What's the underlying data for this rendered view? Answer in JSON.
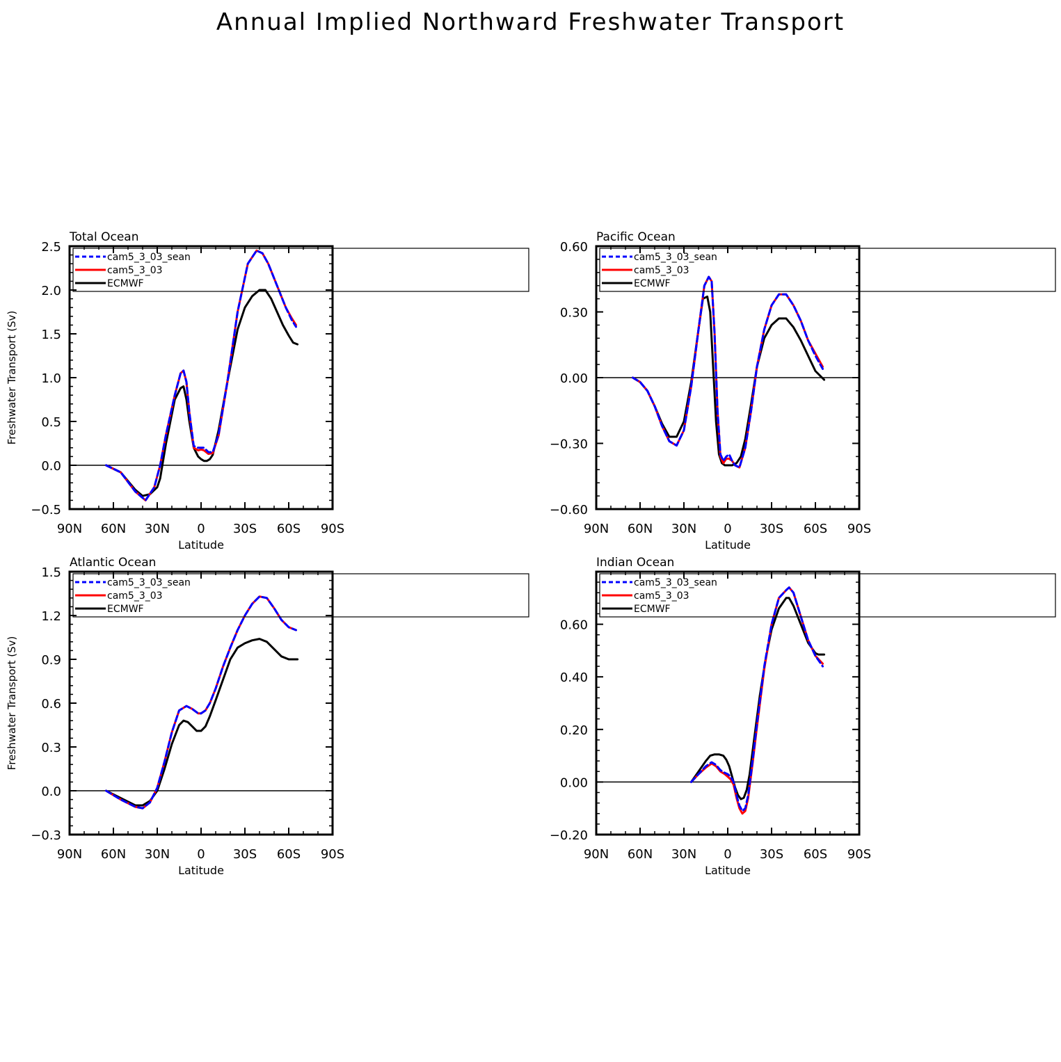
{
  "figure_title": "Annual Implied Northward Freshwater Transport",
  "colors": {
    "cam5_3_03_sean": "#0000ff",
    "cam5_3_03": "#ff0000",
    "ECMWF": "#000000",
    "frame": "#000000"
  },
  "chart_data": [
    {
      "type": "line",
      "title": "Total Ocean",
      "xlabel": "Latitude",
      "ylabel": "Freshwater Transport (Sv)",
      "x_axis_note": "Latitude increases from 90N (left) to 90S (right)",
      "xlim": [
        -90,
        90
      ],
      "xticks": [
        -90,
        -60,
        -30,
        0,
        30,
        60,
        90
      ],
      "xtick_labels": [
        "90N",
        "60N",
        "30N",
        "0",
        "30S",
        "60S",
        "90S"
      ],
      "ylim": [
        -0.5,
        2.5
      ],
      "yticks": [
        -0.5,
        0.0,
        0.5,
        1.0,
        1.5,
        2.0,
        2.5
      ],
      "ytick_labels": [
        "−0.5",
        "0.0",
        "0.5",
        "1.0",
        "1.5",
        "2.0",
        "2.5"
      ],
      "zero_line": true,
      "grid": false,
      "legend_position": "top-left",
      "series": [
        {
          "name": "cam5_3_03_sean",
          "style": "dashed",
          "color": "#0000ff",
          "x": [
            -65,
            -55,
            -45,
            -38,
            -32,
            -28,
            -24,
            -18,
            -14,
            -12,
            -10,
            -8,
            -5,
            -2,
            0,
            2,
            5,
            8,
            12,
            18,
            25,
            32,
            38,
            42,
            46,
            52,
            58,
            62,
            65
          ],
          "y": [
            0,
            -0.08,
            -0.3,
            -0.4,
            -0.25,
            0.0,
            0.35,
            0.8,
            1.05,
            1.08,
            0.95,
            0.6,
            0.22,
            0.2,
            0.2,
            0.2,
            0.15,
            0.15,
            0.35,
            0.95,
            1.75,
            2.3,
            2.45,
            2.42,
            2.3,
            2.05,
            1.8,
            1.66,
            1.58
          ]
        },
        {
          "name": "cam5_3_03",
          "style": "solid",
          "color": "#ff0000",
          "x": [
            -65,
            -55,
            -45,
            -38,
            -32,
            -28,
            -24,
            -18,
            -14,
            -12,
            -10,
            -8,
            -5,
            -2,
            0,
            2,
            5,
            8,
            12,
            18,
            25,
            32,
            38,
            42,
            46,
            52,
            58,
            62,
            65
          ],
          "y": [
            0,
            -0.08,
            -0.3,
            -0.4,
            -0.25,
            0.0,
            0.35,
            0.8,
            1.05,
            1.08,
            0.95,
            0.6,
            0.2,
            0.17,
            0.18,
            0.17,
            0.13,
            0.14,
            0.34,
            0.95,
            1.75,
            2.3,
            2.45,
            2.42,
            2.3,
            2.05,
            1.8,
            1.68,
            1.6
          ]
        },
        {
          "name": "ECMWF",
          "style": "solid",
          "color": "#000000",
          "x": [
            -65,
            -55,
            -45,
            -40,
            -35,
            -30,
            -28,
            -24,
            -18,
            -14,
            -12,
            -10,
            -8,
            -5,
            -2,
            0,
            2,
            4,
            6,
            8,
            12,
            18,
            25,
            30,
            35,
            40,
            44,
            48,
            52,
            56,
            60,
            63,
            66
          ],
          "y": [
            0,
            -0.08,
            -0.28,
            -0.35,
            -0.33,
            -0.25,
            -0.15,
            0.25,
            0.75,
            0.88,
            0.9,
            0.75,
            0.5,
            0.2,
            0.1,
            0.07,
            0.05,
            0.05,
            0.07,
            0.12,
            0.4,
            0.95,
            1.55,
            1.8,
            1.93,
            2.0,
            2.0,
            1.9,
            1.75,
            1.6,
            1.48,
            1.4,
            1.38
          ]
        }
      ]
    },
    {
      "type": "line",
      "title": "Pacific Ocean",
      "xlabel": "Latitude",
      "ylabel": "",
      "x_axis_note": "Latitude increases from 90N (left) to 90S (right)",
      "xlim": [
        -90,
        90
      ],
      "xticks": [
        -90,
        -60,
        -30,
        0,
        30,
        60,
        90
      ],
      "xtick_labels": [
        "90N",
        "60N",
        "30N",
        "0",
        "30S",
        "60S",
        "90S"
      ],
      "ylim": [
        -0.6,
        0.6
      ],
      "yticks": [
        -0.6,
        -0.3,
        0.0,
        0.3,
        0.6
      ],
      "ytick_labels": [
        "−0.60",
        "−0.30",
        "0.00",
        "0.30",
        "0.60"
      ],
      "zero_line": true,
      "grid": false,
      "legend_position": "top-left",
      "series": [
        {
          "name": "cam5_3_03_sean",
          "style": "dashed",
          "color": "#0000ff",
          "x": [
            -65,
            -60,
            -55,
            -50,
            -45,
            -40,
            -35,
            -30,
            -25,
            -20,
            -16,
            -13,
            -11,
            -9,
            -7,
            -5,
            -3,
            -1,
            1,
            3,
            5,
            8,
            12,
            16,
            20,
            25,
            30,
            35,
            40,
            45,
            50,
            55,
            60,
            65
          ],
          "y": [
            0,
            -0.02,
            -0.06,
            -0.13,
            -0.22,
            -0.29,
            -0.31,
            -0.24,
            -0.04,
            0.22,
            0.42,
            0.46,
            0.44,
            0.2,
            -0.15,
            -0.35,
            -0.38,
            -0.36,
            -0.35,
            -0.38,
            -0.4,
            -0.41,
            -0.32,
            -0.15,
            0.05,
            0.22,
            0.33,
            0.38,
            0.38,
            0.33,
            0.26,
            0.17,
            0.1,
            0.04
          ]
        },
        {
          "name": "cam5_3_03",
          "style": "solid",
          "color": "#ff0000",
          "x": [
            -65,
            -60,
            -55,
            -50,
            -45,
            -40,
            -35,
            -30,
            -25,
            -20,
            -16,
            -13,
            -11,
            -9,
            -7,
            -5,
            -3,
            -1,
            1,
            3,
            5,
            8,
            12,
            16,
            20,
            25,
            30,
            35,
            40,
            45,
            50,
            55,
            60,
            65
          ],
          "y": [
            0,
            -0.02,
            -0.06,
            -0.13,
            -0.22,
            -0.29,
            -0.31,
            -0.24,
            -0.04,
            0.22,
            0.42,
            0.46,
            0.44,
            0.2,
            -0.15,
            -0.36,
            -0.39,
            -0.37,
            -0.37,
            -0.38,
            -0.4,
            -0.41,
            -0.32,
            -0.15,
            0.05,
            0.22,
            0.33,
            0.38,
            0.38,
            0.33,
            0.26,
            0.17,
            0.11,
            0.05
          ]
        },
        {
          "name": "ECMWF",
          "style": "solid",
          "color": "#000000",
          "x": [
            -65,
            -60,
            -55,
            -50,
            -45,
            -40,
            -35,
            -30,
            -25,
            -20,
            -17,
            -14,
            -12,
            -10,
            -8,
            -6,
            -4,
            -2,
            0,
            3,
            6,
            9,
            12,
            16,
            20,
            25,
            30,
            35,
            40,
            45,
            50,
            55,
            60,
            66
          ],
          "y": [
            0,
            -0.02,
            -0.06,
            -0.13,
            -0.21,
            -0.27,
            -0.27,
            -0.2,
            -0.02,
            0.22,
            0.36,
            0.37,
            0.3,
            0.05,
            -0.2,
            -0.35,
            -0.39,
            -0.4,
            -0.4,
            -0.4,
            -0.39,
            -0.36,
            -0.28,
            -0.12,
            0.05,
            0.18,
            0.24,
            0.27,
            0.27,
            0.23,
            0.17,
            0.1,
            0.03,
            -0.01
          ]
        }
      ]
    },
    {
      "type": "line",
      "title": "Atlantic Ocean",
      "xlabel": "Latitude",
      "ylabel": "Freshwater Transport (Sv)",
      "x_axis_note": "Latitude increases from 90N (left) to 90S (right)",
      "xlim": [
        -90,
        90
      ],
      "xticks": [
        -90,
        -60,
        -30,
        0,
        30,
        60,
        90
      ],
      "xtick_labels": [
        "90N",
        "60N",
        "30N",
        "0",
        "30S",
        "60S",
        "90S"
      ],
      "ylim": [
        -0.3,
        1.5
      ],
      "yticks": [
        -0.3,
        0.0,
        0.3,
        0.6,
        0.9,
        1.2,
        1.5
      ],
      "ytick_labels": [
        "−0.3",
        "0.0",
        "0.3",
        "0.6",
        "0.9",
        "1.2",
        "1.5"
      ],
      "zero_line": true,
      "grid": false,
      "legend_position": "top-left",
      "series": [
        {
          "name": "cam5_3_03_sean",
          "style": "dashed",
          "color": "#0000ff",
          "x": [
            -65,
            -55,
            -45,
            -40,
            -35,
            -30,
            -25,
            -20,
            -15,
            -10,
            -6,
            -2,
            0,
            3,
            6,
            10,
            15,
            20,
            25,
            30,
            35,
            40,
            45,
            50,
            55,
            60,
            65
          ],
          "y": [
            0,
            -0.06,
            -0.11,
            -0.12,
            -0.08,
            0.02,
            0.2,
            0.4,
            0.55,
            0.58,
            0.56,
            0.53,
            0.53,
            0.55,
            0.6,
            0.7,
            0.85,
            0.98,
            1.1,
            1.2,
            1.28,
            1.33,
            1.32,
            1.25,
            1.17,
            1.12,
            1.1
          ]
        },
        {
          "name": "cam5_3_03",
          "style": "solid",
          "color": "#ff0000",
          "x": [
            -65,
            -55,
            -45,
            -40,
            -35,
            -30,
            -25,
            -20,
            -15,
            -10,
            -6,
            -2,
            0,
            3,
            6,
            10,
            15,
            20,
            25,
            30,
            35,
            40,
            45,
            50,
            55,
            60,
            65
          ],
          "y": [
            0,
            -0.06,
            -0.11,
            -0.12,
            -0.08,
            0.02,
            0.2,
            0.4,
            0.55,
            0.58,
            0.56,
            0.53,
            0.53,
            0.55,
            0.6,
            0.7,
            0.85,
            0.98,
            1.1,
            1.2,
            1.28,
            1.33,
            1.32,
            1.25,
            1.17,
            1.12,
            1.1
          ]
        },
        {
          "name": "ECMWF",
          "style": "solid",
          "color": "#000000",
          "x": [
            -65,
            -55,
            -45,
            -40,
            -35,
            -30,
            -25,
            -20,
            -15,
            -12,
            -9,
            -6,
            -3,
            0,
            3,
            6,
            10,
            15,
            20,
            25,
            30,
            35,
            40,
            45,
            50,
            55,
            60,
            66
          ],
          "y": [
            0,
            -0.05,
            -0.1,
            -0.1,
            -0.07,
            0.0,
            0.15,
            0.32,
            0.45,
            0.48,
            0.47,
            0.44,
            0.41,
            0.41,
            0.44,
            0.51,
            0.62,
            0.76,
            0.9,
            0.98,
            1.01,
            1.03,
            1.04,
            1.02,
            0.97,
            0.92,
            0.9,
            0.9
          ]
        }
      ]
    },
    {
      "type": "line",
      "title": "Indian Ocean",
      "xlabel": "Latitude",
      "ylabel": "",
      "x_axis_note": "Latitude increases from 90N (left) to 90S (right)",
      "xlim": [
        -90,
        90
      ],
      "xticks": [
        -90,
        -60,
        -30,
        0,
        30,
        60,
        90
      ],
      "xtick_labels": [
        "90N",
        "60N",
        "30N",
        "0",
        "30S",
        "60S",
        "90S"
      ],
      "ylim": [
        -0.2,
        0.8
      ],
      "yticks": [
        -0.2,
        0.0,
        0.2,
        0.4,
        0.6
      ],
      "ytick_labels": [
        "−0.20",
        "0.00",
        "0.20",
        "0.40",
        "0.60"
      ],
      "zero_line": true,
      "grid": false,
      "legend_position": "top-left",
      "series": [
        {
          "name": "cam5_3_03_sean",
          "style": "dashed",
          "color": "#0000ff",
          "x": [
            -25,
            -20,
            -15,
            -11,
            -8,
            -5,
            -2,
            0,
            2,
            4,
            6,
            8,
            10,
            12,
            14,
            17,
            20,
            25,
            30,
            35,
            40,
            42,
            45,
            50,
            55,
            60,
            65
          ],
          "y": [
            0,
            0.03,
            0.06,
            0.075,
            0.065,
            0.045,
            0.035,
            0.03,
            0.02,
            0.0,
            -0.05,
            -0.09,
            -0.11,
            -0.1,
            -0.05,
            0.08,
            0.22,
            0.44,
            0.6,
            0.7,
            0.73,
            0.74,
            0.72,
            0.63,
            0.54,
            0.48,
            0.44
          ]
        },
        {
          "name": "cam5_3_03",
          "style": "solid",
          "color": "#ff0000",
          "x": [
            -25,
            -20,
            -15,
            -11,
            -8,
            -5,
            -2,
            0,
            2,
            4,
            6,
            8,
            10,
            12,
            14,
            17,
            20,
            25,
            30,
            35,
            40,
            42,
            45,
            50,
            55,
            60,
            65
          ],
          "y": [
            0,
            0.03,
            0.055,
            0.07,
            0.06,
            0.04,
            0.03,
            0.02,
            0.01,
            -0.01,
            -0.06,
            -0.1,
            -0.12,
            -0.11,
            -0.06,
            0.07,
            0.21,
            0.43,
            0.6,
            0.7,
            0.73,
            0.74,
            0.72,
            0.63,
            0.54,
            0.48,
            0.45
          ]
        },
        {
          "name": "ECMWF",
          "style": "solid",
          "color": "#000000",
          "x": [
            -25,
            -20,
            -15,
            -12,
            -9,
            -6,
            -3,
            -1,
            1,
            3,
            5,
            7,
            9,
            11,
            13,
            15,
            18,
            22,
            26,
            30,
            35,
            40,
            42,
            45,
            50,
            55,
            60,
            62,
            66
          ],
          "y": [
            0,
            0.04,
            0.08,
            0.1,
            0.105,
            0.105,
            0.1,
            0.085,
            0.06,
            0.02,
            -0.02,
            -0.05,
            -0.065,
            -0.06,
            -0.03,
            0.03,
            0.16,
            0.33,
            0.47,
            0.58,
            0.66,
            0.7,
            0.7,
            0.67,
            0.6,
            0.53,
            0.49,
            0.485,
            0.485
          ]
        }
      ]
    }
  ]
}
